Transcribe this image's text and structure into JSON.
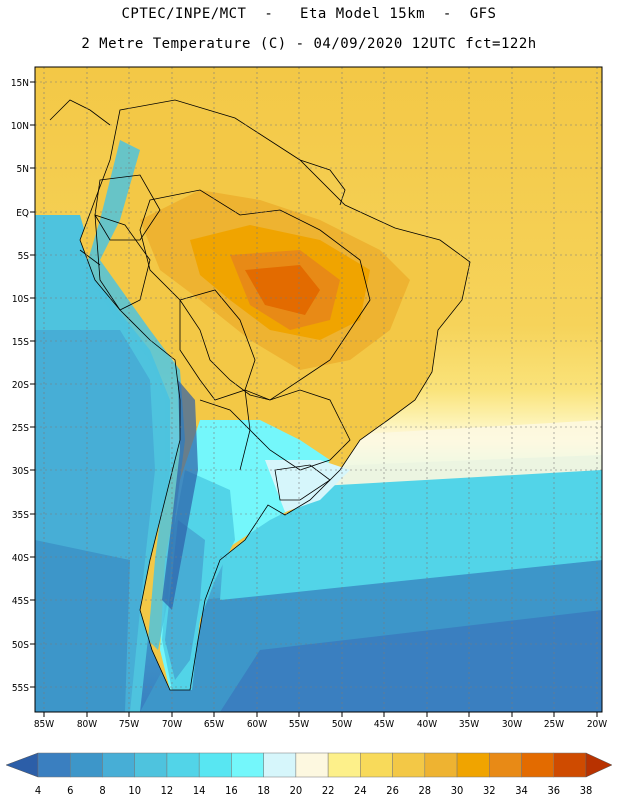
{
  "header": {
    "line1": "CPTEC/INPE/MCT  -   Eta Model 15km  -  GFS",
    "line2": "2 Metre Temperature (C) - 04/09/2020 12UTC fct=122h"
  },
  "map": {
    "lat_labels": [
      "15N",
      "10N",
      "5N",
      "EQ",
      "5S",
      "10S",
      "15S",
      "20S",
      "25S",
      "30S",
      "35S",
      "40S",
      "45S",
      "50S",
      "55S"
    ],
    "lon_labels": [
      "85W",
      "80W",
      "75W",
      "70W",
      "65W",
      "60W",
      "55W",
      "50W",
      "45W",
      "40W",
      "35W",
      "30W",
      "25W",
      "20W"
    ]
  },
  "legend": {
    "colors": [
      "#2c5ea8",
      "#3a7fc0",
      "#3d96c9",
      "#47aed6",
      "#4ec3de",
      "#52d4e8",
      "#58e6f2",
      "#74f7fb",
      "#d6f6fb",
      "#fdf8e0",
      "#fdf08a",
      "#f8da5a",
      "#f3c846",
      "#eeb331",
      "#f0a400",
      "#e88a16",
      "#e36b00",
      "#cf4b00",
      "#b83200"
    ],
    "labels": [
      "4",
      "6",
      "8",
      "10",
      "12",
      "14",
      "16",
      "18",
      "20",
      "22",
      "24",
      "26",
      "28",
      "30",
      "32",
      "34",
      "36",
      "38"
    ]
  }
}
